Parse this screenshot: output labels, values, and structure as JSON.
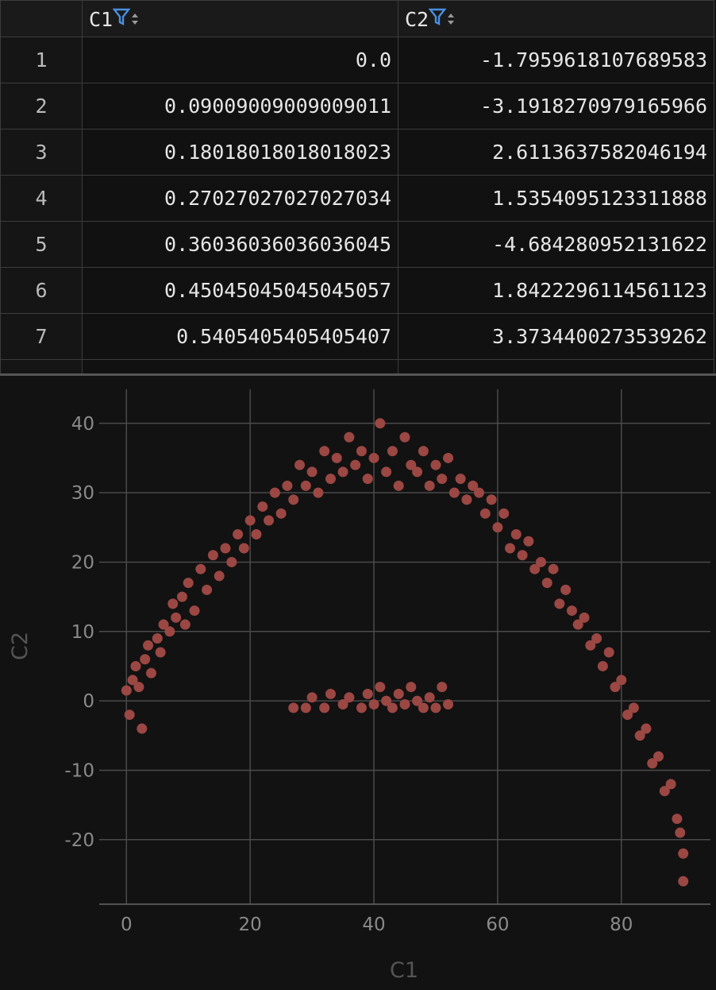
{
  "table": {
    "columns": [
      "C1",
      "C2"
    ],
    "rows": [
      [
        "1",
        "0.0",
        "-1.7959618107689583"
      ],
      [
        "2",
        "0.09009009009009011",
        "-3.1918270979165966"
      ],
      [
        "3",
        "0.18018018018018023",
        "2.6113637582046194"
      ],
      [
        "4",
        "0.27027027027027034",
        "1.5354095123311888"
      ],
      [
        "5",
        "0.36036036036036045",
        "-4.684280952131622"
      ],
      [
        "6",
        "0.45045045045045057",
        "1.8422296114561123"
      ],
      [
        "7",
        "0.5405405405405407",
        "3.3734400273539262"
      ]
    ]
  },
  "chart_data": {
    "type": "scatter",
    "xlabel": "C1",
    "ylabel": "C2",
    "color": "#9b4743",
    "xlim": [
      -4.4,
      94.4
    ],
    "ylim": [
      -29.3,
      44.9
    ],
    "xticks": [
      0,
      20,
      40,
      60,
      80
    ],
    "yticks": [
      -20,
      -10,
      0,
      10,
      20,
      30,
      40
    ],
    "grid": true,
    "x": [
      0,
      0.5,
      1,
      1.5,
      2,
      2.5,
      3,
      3.5,
      4,
      5,
      5.5,
      6,
      7,
      7.5,
      8,
      9,
      9.5,
      10,
      11,
      12,
      13,
      14,
      15,
      16,
      17,
      18,
      19,
      20,
      21,
      22,
      23,
      24,
      25,
      26,
      27,
      28,
      29,
      30,
      31,
      32,
      33,
      34,
      35,
      36,
      37,
      38,
      39,
      40,
      41,
      42,
      43,
      44,
      45,
      46,
      47,
      48,
      49,
      50,
      51,
      52,
      53,
      54,
      55,
      56,
      57,
      58,
      59,
      60,
      61,
      62,
      63,
      64,
      65,
      66,
      67,
      68,
      69,
      70,
      71,
      72,
      73,
      74,
      75,
      76,
      77,
      78,
      79,
      80,
      81,
      82,
      83,
      84,
      85,
      86,
      87,
      88,
      89,
      89.5,
      90,
      90,
      27,
      29,
      30,
      32,
      33,
      35,
      36,
      38,
      39,
      40,
      41,
      42,
      43,
      44,
      45,
      46,
      47,
      48,
      49,
      50,
      51,
      52
    ],
    "values": [
      1.5,
      -2,
      3,
      5,
      2,
      -4,
      6,
      8,
      4,
      9,
      7,
      11,
      10,
      14,
      12,
      15,
      11,
      17,
      13,
      19,
      16,
      21,
      18,
      22,
      20,
      24,
      22,
      26,
      24,
      28,
      26,
      30,
      27,
      31,
      29,
      34,
      31,
      33,
      30,
      36,
      32,
      35,
      33,
      38,
      34,
      36,
      32,
      35,
      40,
      33,
      36,
      31,
      38,
      34,
      33,
      36,
      31,
      34,
      32,
      35,
      30,
      32,
      29,
      31,
      30,
      27,
      29,
      25,
      27,
      22,
      24,
      21,
      23,
      19,
      20,
      17,
      19,
      14,
      16,
      13,
      11,
      12,
      8,
      9,
      5,
      7,
      2,
      3,
      -2,
      -1,
      -5,
      -4,
      -9,
      -8,
      -13,
      -12,
      -17,
      -19,
      -22,
      -26,
      -1,
      -1,
      0.5,
      -1,
      1,
      -0.5,
      0.5,
      -1,
      1,
      -0.5,
      2,
      0,
      -1,
      1,
      -0.5,
      2,
      0,
      -1,
      0.5,
      -1,
      2,
      -0.5
    ]
  }
}
